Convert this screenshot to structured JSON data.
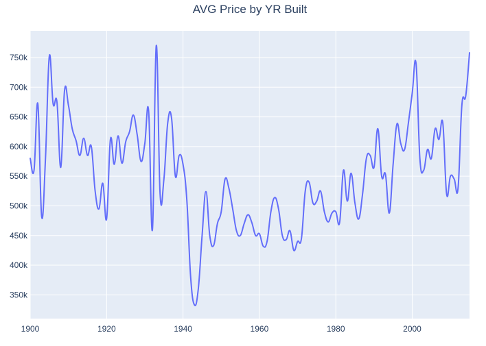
{
  "chart_data": {
    "type": "line",
    "title": "AVG Price by YR Built",
    "xlabel": "",
    "ylabel": "",
    "xlim": [
      1900,
      2015
    ],
    "ylim": [
      310000,
      795000
    ],
    "x_ticks": [
      1900,
      1920,
      1940,
      1960,
      1980,
      2000
    ],
    "x_tick_labels": [
      "1900",
      "1920",
      "1940",
      "1960",
      "1980",
      "2000"
    ],
    "y_ticks": [
      350000,
      400000,
      450000,
      500000,
      550000,
      600000,
      650000,
      700000,
      750000
    ],
    "y_tick_labels": [
      "350k",
      "400k",
      "450k",
      "500k",
      "550k",
      "600k",
      "650k",
      "700k",
      "750k"
    ],
    "grid": true,
    "legend": false,
    "series": [
      {
        "color": "#636efa",
        "x": [
          1900,
          1901,
          1902,
          1903,
          1904,
          1905,
          1906,
          1907,
          1908,
          1909,
          1910,
          1911,
          1912,
          1913,
          1914,
          1915,
          1916,
          1917,
          1918,
          1919,
          1920,
          1921,
          1922,
          1923,
          1924,
          1925,
          1926,
          1927,
          1928,
          1929,
          1930,
          1931,
          1932,
          1933,
          1934,
          1935,
          1936,
          1937,
          1938,
          1939,
          1940,
          1941,
          1942,
          1943,
          1944,
          1945,
          1946,
          1947,
          1948,
          1949,
          1950,
          1951,
          1952,
          1953,
          1954,
          1955,
          1956,
          1957,
          1958,
          1959,
          1960,
          1961,
          1962,
          1963,
          1964,
          1965,
          1966,
          1967,
          1968,
          1969,
          1970,
          1971,
          1972,
          1973,
          1974,
          1975,
          1976,
          1977,
          1978,
          1979,
          1980,
          1981,
          1982,
          1983,
          1984,
          1985,
          1986,
          1987,
          1988,
          1989,
          1990,
          1991,
          1992,
          1993,
          1994,
          1995,
          1996,
          1997,
          1998,
          1999,
          2000,
          2001,
          2002,
          2003,
          2004,
          2005,
          2006,
          2007,
          2008,
          2009,
          2010,
          2011,
          2012,
          2013,
          2014,
          2015
        ],
        "y": [
          580000,
          560000,
          672000,
          482000,
          580000,
          752000,
          672000,
          675000,
          565000,
          695000,
          670000,
          630000,
          610000,
          585000,
          614000,
          585000,
          600000,
          525000,
          495000,
          538000,
          478000,
          612000,
          570000,
          618000,
          572000,
          608000,
          625000,
          653000,
          620000,
          575000,
          605000,
          660000,
          460000,
          770000,
          520000,
          545000,
          640000,
          648000,
          550000,
          585000,
          570000,
          510000,
          380000,
          333000,
          360000,
          450000,
          524000,
          450000,
          433000,
          470000,
          490000,
          545000,
          530000,
          495000,
          458000,
          450000,
          470000,
          485000,
          472000,
          450000,
          453000,
          432000,
          440000,
          490000,
          514000,
          495000,
          450000,
          443000,
          458000,
          425000,
          440000,
          445000,
          525000,
          540000,
          505000,
          508000,
          525000,
          490000,
          473000,
          488000,
          490000,
          472000,
          560000,
          508000,
          555000,
          505000,
          478000,
          520000,
          580000,
          585000,
          565000,
          630000,
          550000,
          553000,
          488000,
          570000,
          638000,
          605000,
          595000,
          640000,
          690000,
          740000,
          580000,
          560000,
          595000,
          580000,
          630000,
          612000,
          640000,
          520000,
          550000,
          545000,
          530000,
          670000,
          685000,
          758000
        ]
      }
    ]
  }
}
